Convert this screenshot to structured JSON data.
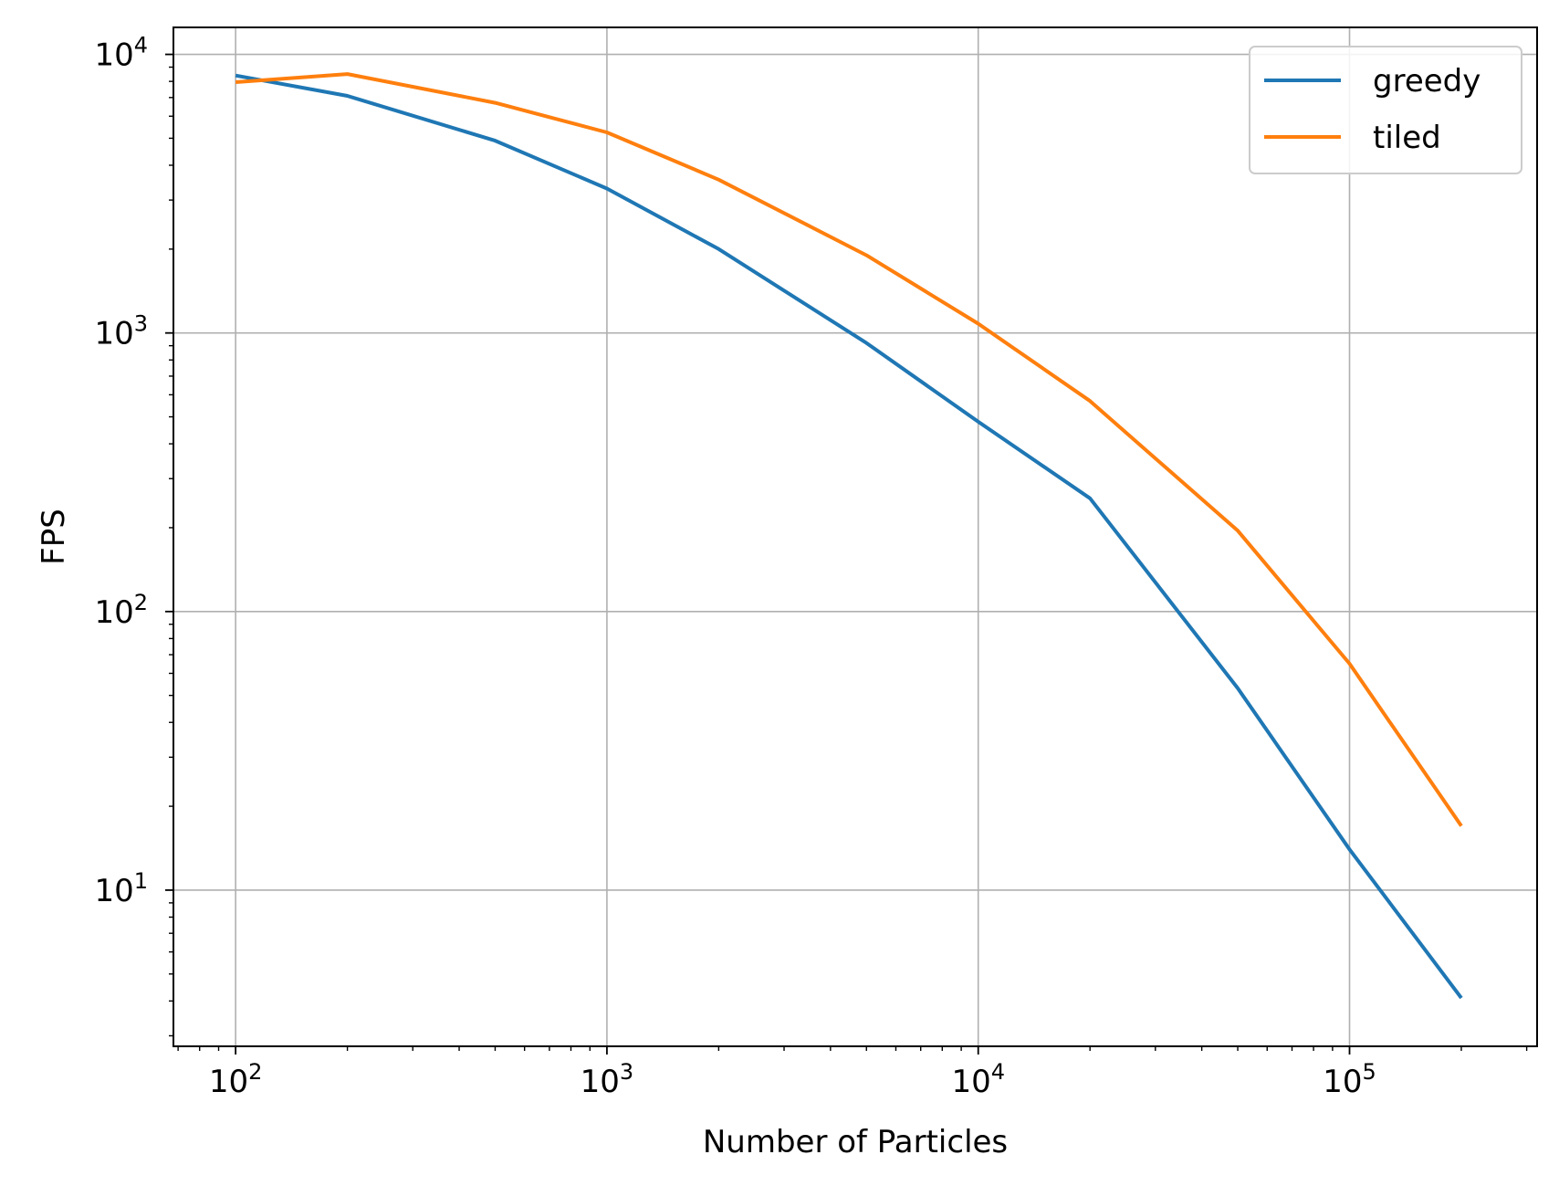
{
  "chart_data": {
    "type": "line",
    "title": "",
    "xlabel": "Number of Particles",
    "ylabel": "FPS",
    "xscale": "log",
    "yscale": "log",
    "xlim": [
      68,
      320000
    ],
    "ylim": [
      2.75,
      12500
    ],
    "grid": true,
    "legend_position": "top-right",
    "x": [
      100,
      200,
      500,
      1000,
      2000,
      5000,
      10000,
      20000,
      50000,
      100000,
      200000
    ],
    "x_ticks": [
      {
        "value": 100,
        "base": "10",
        "exp": "2"
      },
      {
        "value": 1000,
        "base": "10",
        "exp": "3"
      },
      {
        "value": 10000,
        "base": "10",
        "exp": "4"
      },
      {
        "value": 100000,
        "base": "10",
        "exp": "5"
      }
    ],
    "y_ticks": [
      {
        "value": 10,
        "base": "10",
        "exp": "1"
      },
      {
        "value": 100,
        "base": "10",
        "exp": "2"
      },
      {
        "value": 1000,
        "base": "10",
        "exp": "3"
      },
      {
        "value": 10000,
        "base": "10",
        "exp": "4"
      }
    ],
    "series": [
      {
        "name": "greedy",
        "color": "#1f77b4",
        "values": [
          8400,
          7100,
          4900,
          3300,
          2000,
          920,
          480,
          255,
          53,
          14,
          4.1
        ]
      },
      {
        "name": "tiled",
        "color": "#ff7f0e",
        "values": [
          7950,
          8500,
          6700,
          5250,
          3550,
          1900,
          1080,
          570,
          195,
          65,
          17
        ]
      }
    ]
  }
}
